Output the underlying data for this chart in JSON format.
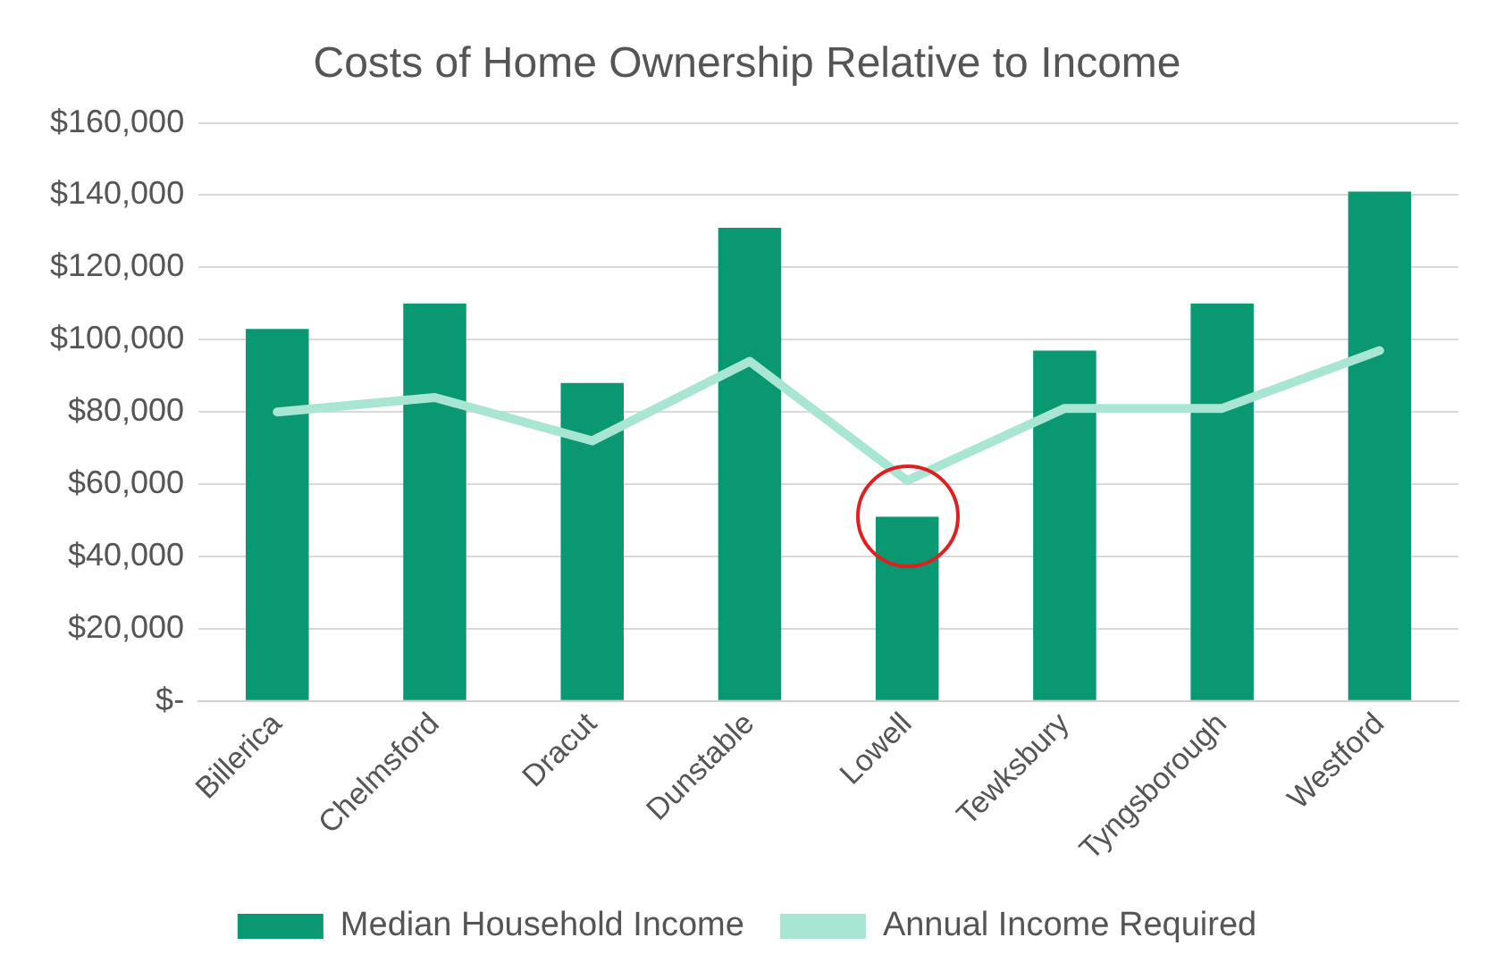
{
  "chart_data": {
    "type": "bar",
    "title": "Costs of Home Ownership Relative to Income",
    "categories": [
      "Billerica",
      "Chelmsford",
      "Dracut",
      "Dunstable",
      "Lowell",
      "Tewksbury",
      "Tyngsborough",
      "Westford"
    ],
    "series": [
      {
        "name": "Median Household Income",
        "color": "#0a9873",
        "values": [
          103000,
          110000,
          88000,
          131000,
          51000,
          97000,
          110000,
          141000
        ]
      },
      {
        "name": "Annual Income Required",
        "type": "line",
        "color": "#a9e5d3",
        "values": [
          80000,
          84000,
          72000,
          94000,
          61000,
          81000,
          81000,
          97000
        ]
      }
    ],
    "ylim": [
      0,
      160000
    ],
    "yticks": [
      {
        "value": 0,
        "label": "$-"
      },
      {
        "value": 20000,
        "label": "$20,000"
      },
      {
        "value": 40000,
        "label": "$40,000"
      },
      {
        "value": 60000,
        "label": "$60,000"
      },
      {
        "value": 80000,
        "label": "$80,000"
      },
      {
        "value": 100000,
        "label": "$100,000"
      },
      {
        "value": 120000,
        "label": "$120,000"
      },
      {
        "value": 140000,
        "label": "$140,000"
      },
      {
        "value": 160000,
        "label": "$160,000"
      }
    ],
    "grid": "y",
    "legend": "bottom",
    "marker": "none",
    "line_style": "solid"
  }
}
